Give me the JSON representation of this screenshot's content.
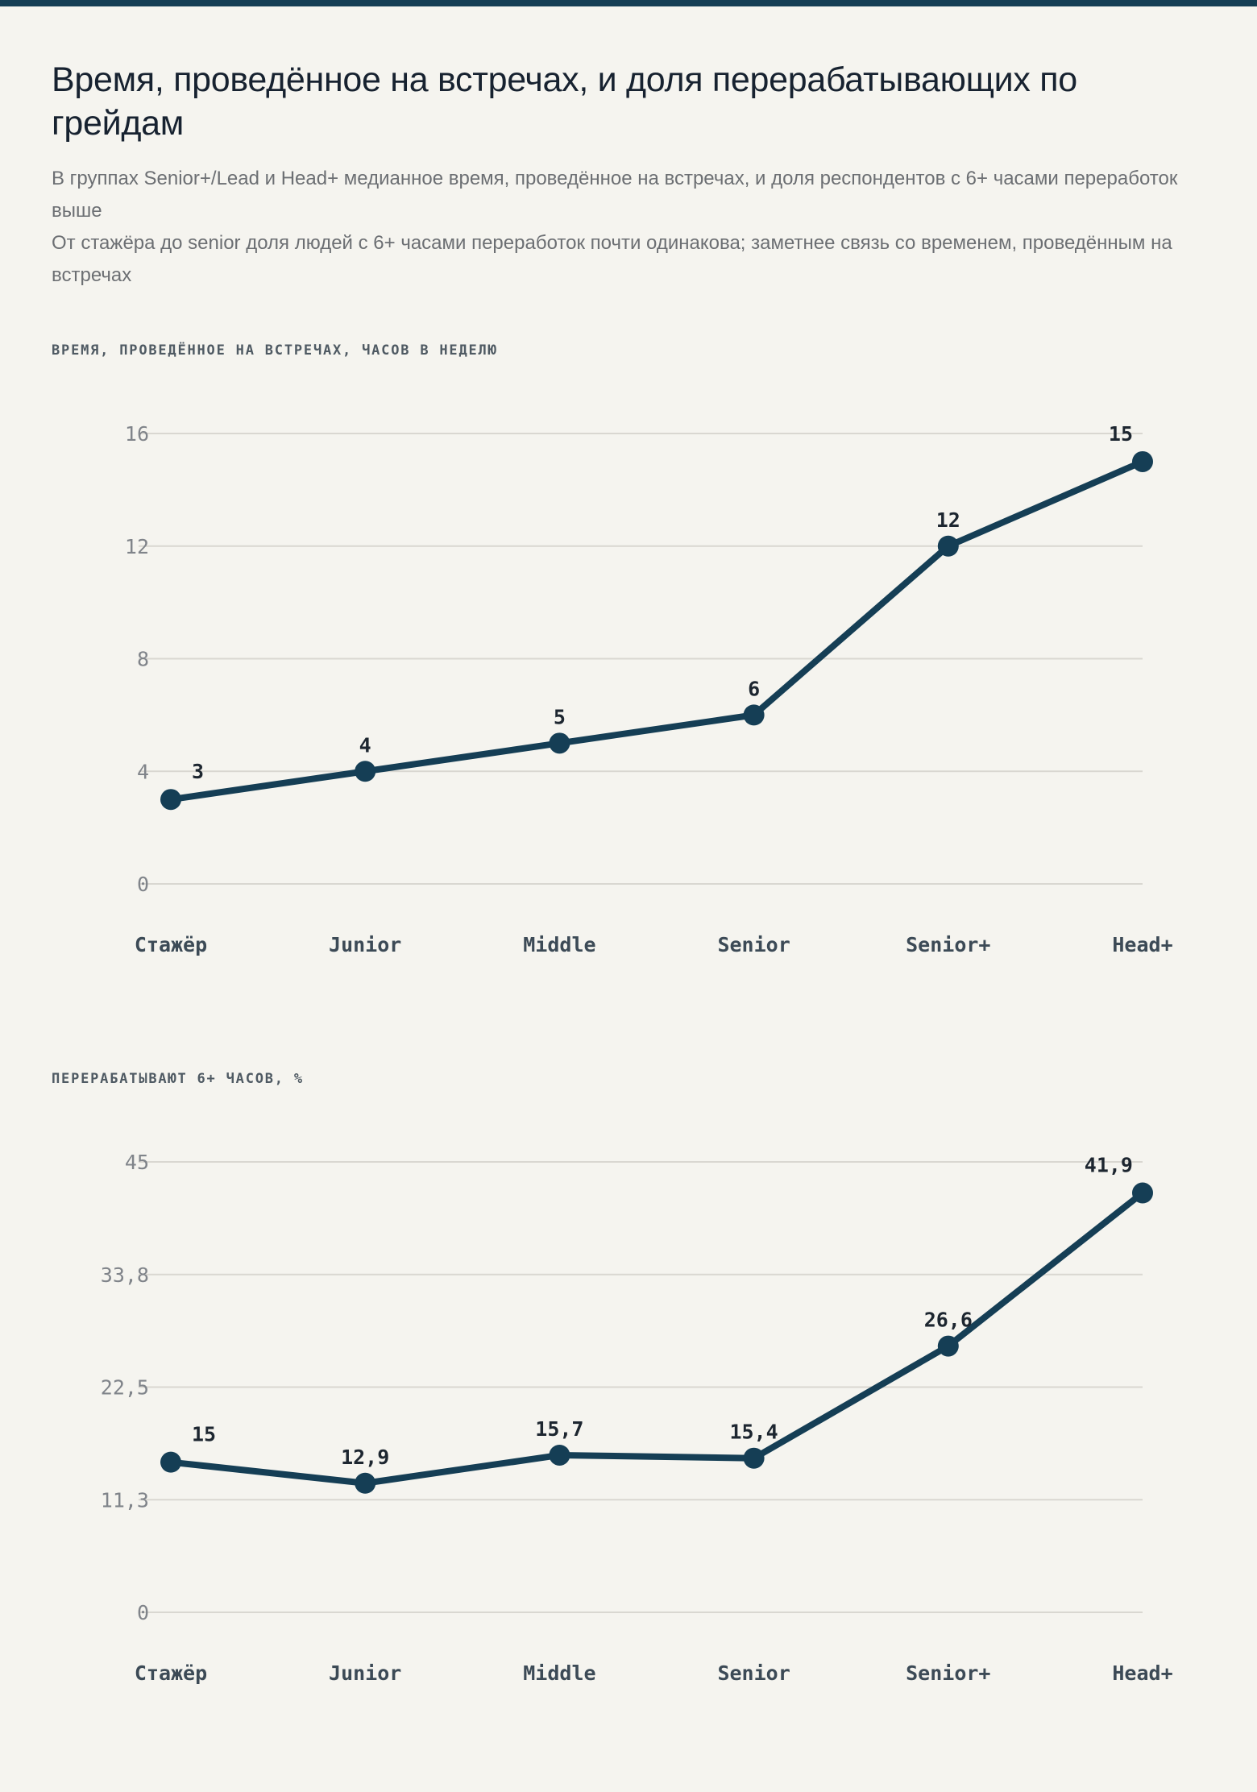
{
  "header": {
    "title": "Время, проведённое на встречах, и доля перерабатывающих по грейдам",
    "subtitle_lines": [
      "В группах Senior+/Lead и Head+ медианное время, проведённое на встречах, и доля респондентов с 6+ часами переработок выше",
      "От стажёра до senior доля людей с 6+ часами переработок почти одинакова; заметнее связь со временем, проведённым на встречах"
    ]
  },
  "colors": {
    "accent": "#153e55",
    "background": "#f5f4ef",
    "grid": "#d9d7d1"
  },
  "chart_data": [
    {
      "type": "line",
      "title": "ВРЕМЯ, ПРОВЕДЁННОЕ НА ВСТРЕЧАХ, ЧАСОВ В НЕДЕЛЮ",
      "categories": [
        "Стажёр",
        "Junior",
        "Middle",
        "Senior",
        "Senior+",
        "Head+"
      ],
      "series": [
        {
          "values": [
            3,
            4,
            5,
            6,
            12,
            15
          ]
        }
      ],
      "data_labels": [
        "3",
        "4",
        "5",
        "6",
        "12",
        "15"
      ],
      "yticks": [
        0,
        4,
        8,
        12,
        16
      ],
      "ytick_labels": [
        "0",
        "4",
        "8",
        "12",
        "16"
      ],
      "ylim": [
        0,
        16
      ],
      "grid": true
    },
    {
      "type": "line",
      "title": "ПЕРЕРАБАТЫВАЮТ 6+ ЧАСОВ, %",
      "categories": [
        "Стажёр",
        "Junior",
        "Middle",
        "Senior",
        "Senior+",
        "Head+"
      ],
      "series": [
        {
          "values": [
            15,
            12.9,
            15.7,
            15.4,
            26.6,
            41.9
          ]
        }
      ],
      "data_labels": [
        "15",
        "12,9",
        "15,7",
        "15,4",
        "26,6",
        "41,9"
      ],
      "yticks": [
        0,
        11.25,
        22.5,
        33.75,
        45
      ],
      "ytick_labels": [
        "0",
        "11,3",
        "22,5",
        "33,8",
        "45"
      ],
      "ylim": [
        0,
        45
      ],
      "grid": true
    }
  ]
}
